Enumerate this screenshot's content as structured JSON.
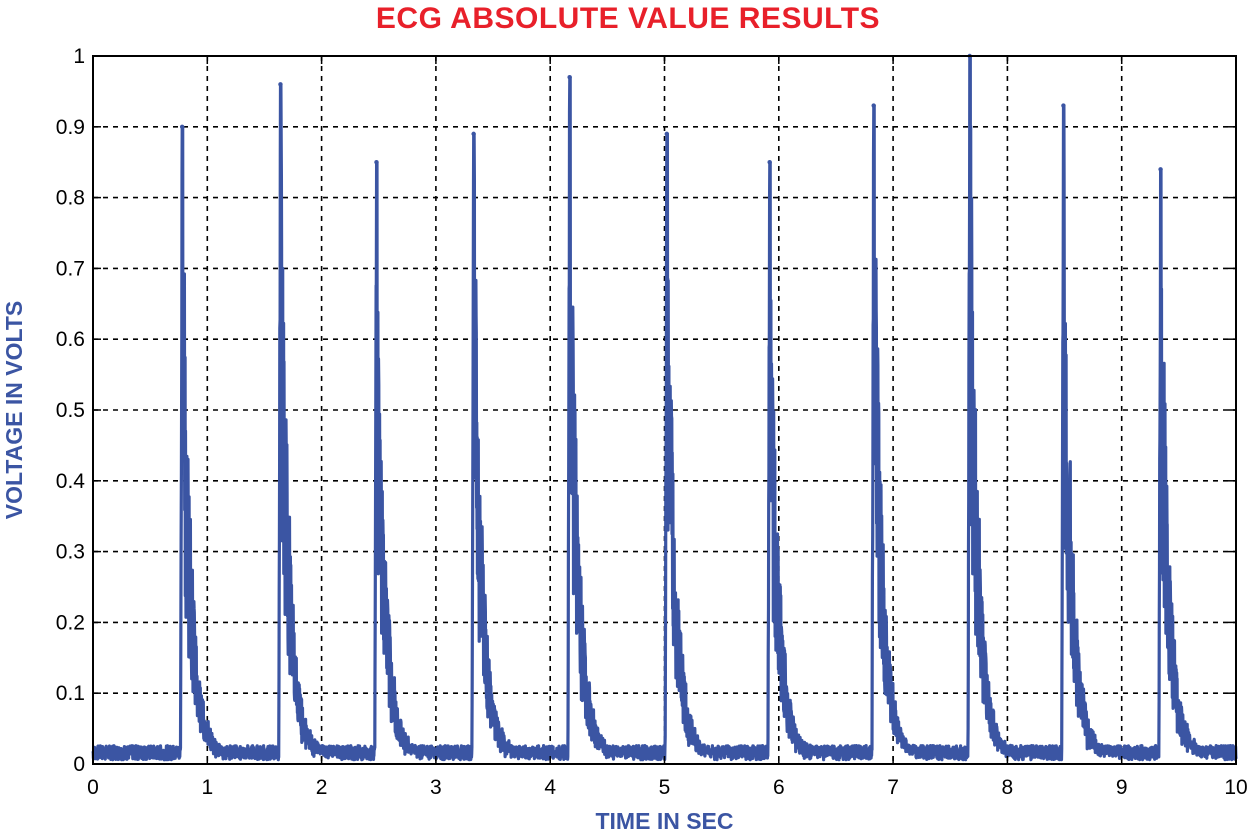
{
  "chart_data": {
    "type": "line",
    "title": "ECG ABSOLUTE VALUE RESULTS",
    "xlabel": "TIME IN SEC",
    "ylabel": "VOLTAGE IN VOLTS",
    "xlim": [
      0,
      10
    ],
    "ylim": [
      0,
      1
    ],
    "xticks": [
      "0",
      "1",
      "2",
      "3",
      "4",
      "5",
      "6",
      "7",
      "8",
      "9",
      "10"
    ],
    "yticks": [
      "0",
      "0.1",
      "0.2",
      "0.3",
      "0.4",
      "0.5",
      "0.6",
      "0.7",
      "0.8",
      "0.9",
      "1"
    ],
    "grid": true,
    "series": [
      {
        "peaks": [
          {
            "t": 0.78,
            "v": 0.9
          },
          {
            "t": 1.64,
            "v": 0.96
          },
          {
            "t": 2.48,
            "v": 0.85
          },
          {
            "t": 3.33,
            "v": 0.89
          },
          {
            "t": 4.17,
            "v": 0.97
          },
          {
            "t": 5.02,
            "v": 0.89
          },
          {
            "t": 5.92,
            "v": 0.85
          },
          {
            "t": 6.83,
            "v": 0.93
          },
          {
            "t": 7.67,
            "v": 1.0
          },
          {
            "t": 8.49,
            "v": 0.93
          },
          {
            "t": 9.34,
            "v": 0.84
          }
        ],
        "baseline": 0.02
      }
    ],
    "colors": {
      "title": "#e8202a",
      "axis_title": "#3b55a3",
      "line": "#3b55a3",
      "grid": "#000000"
    }
  }
}
